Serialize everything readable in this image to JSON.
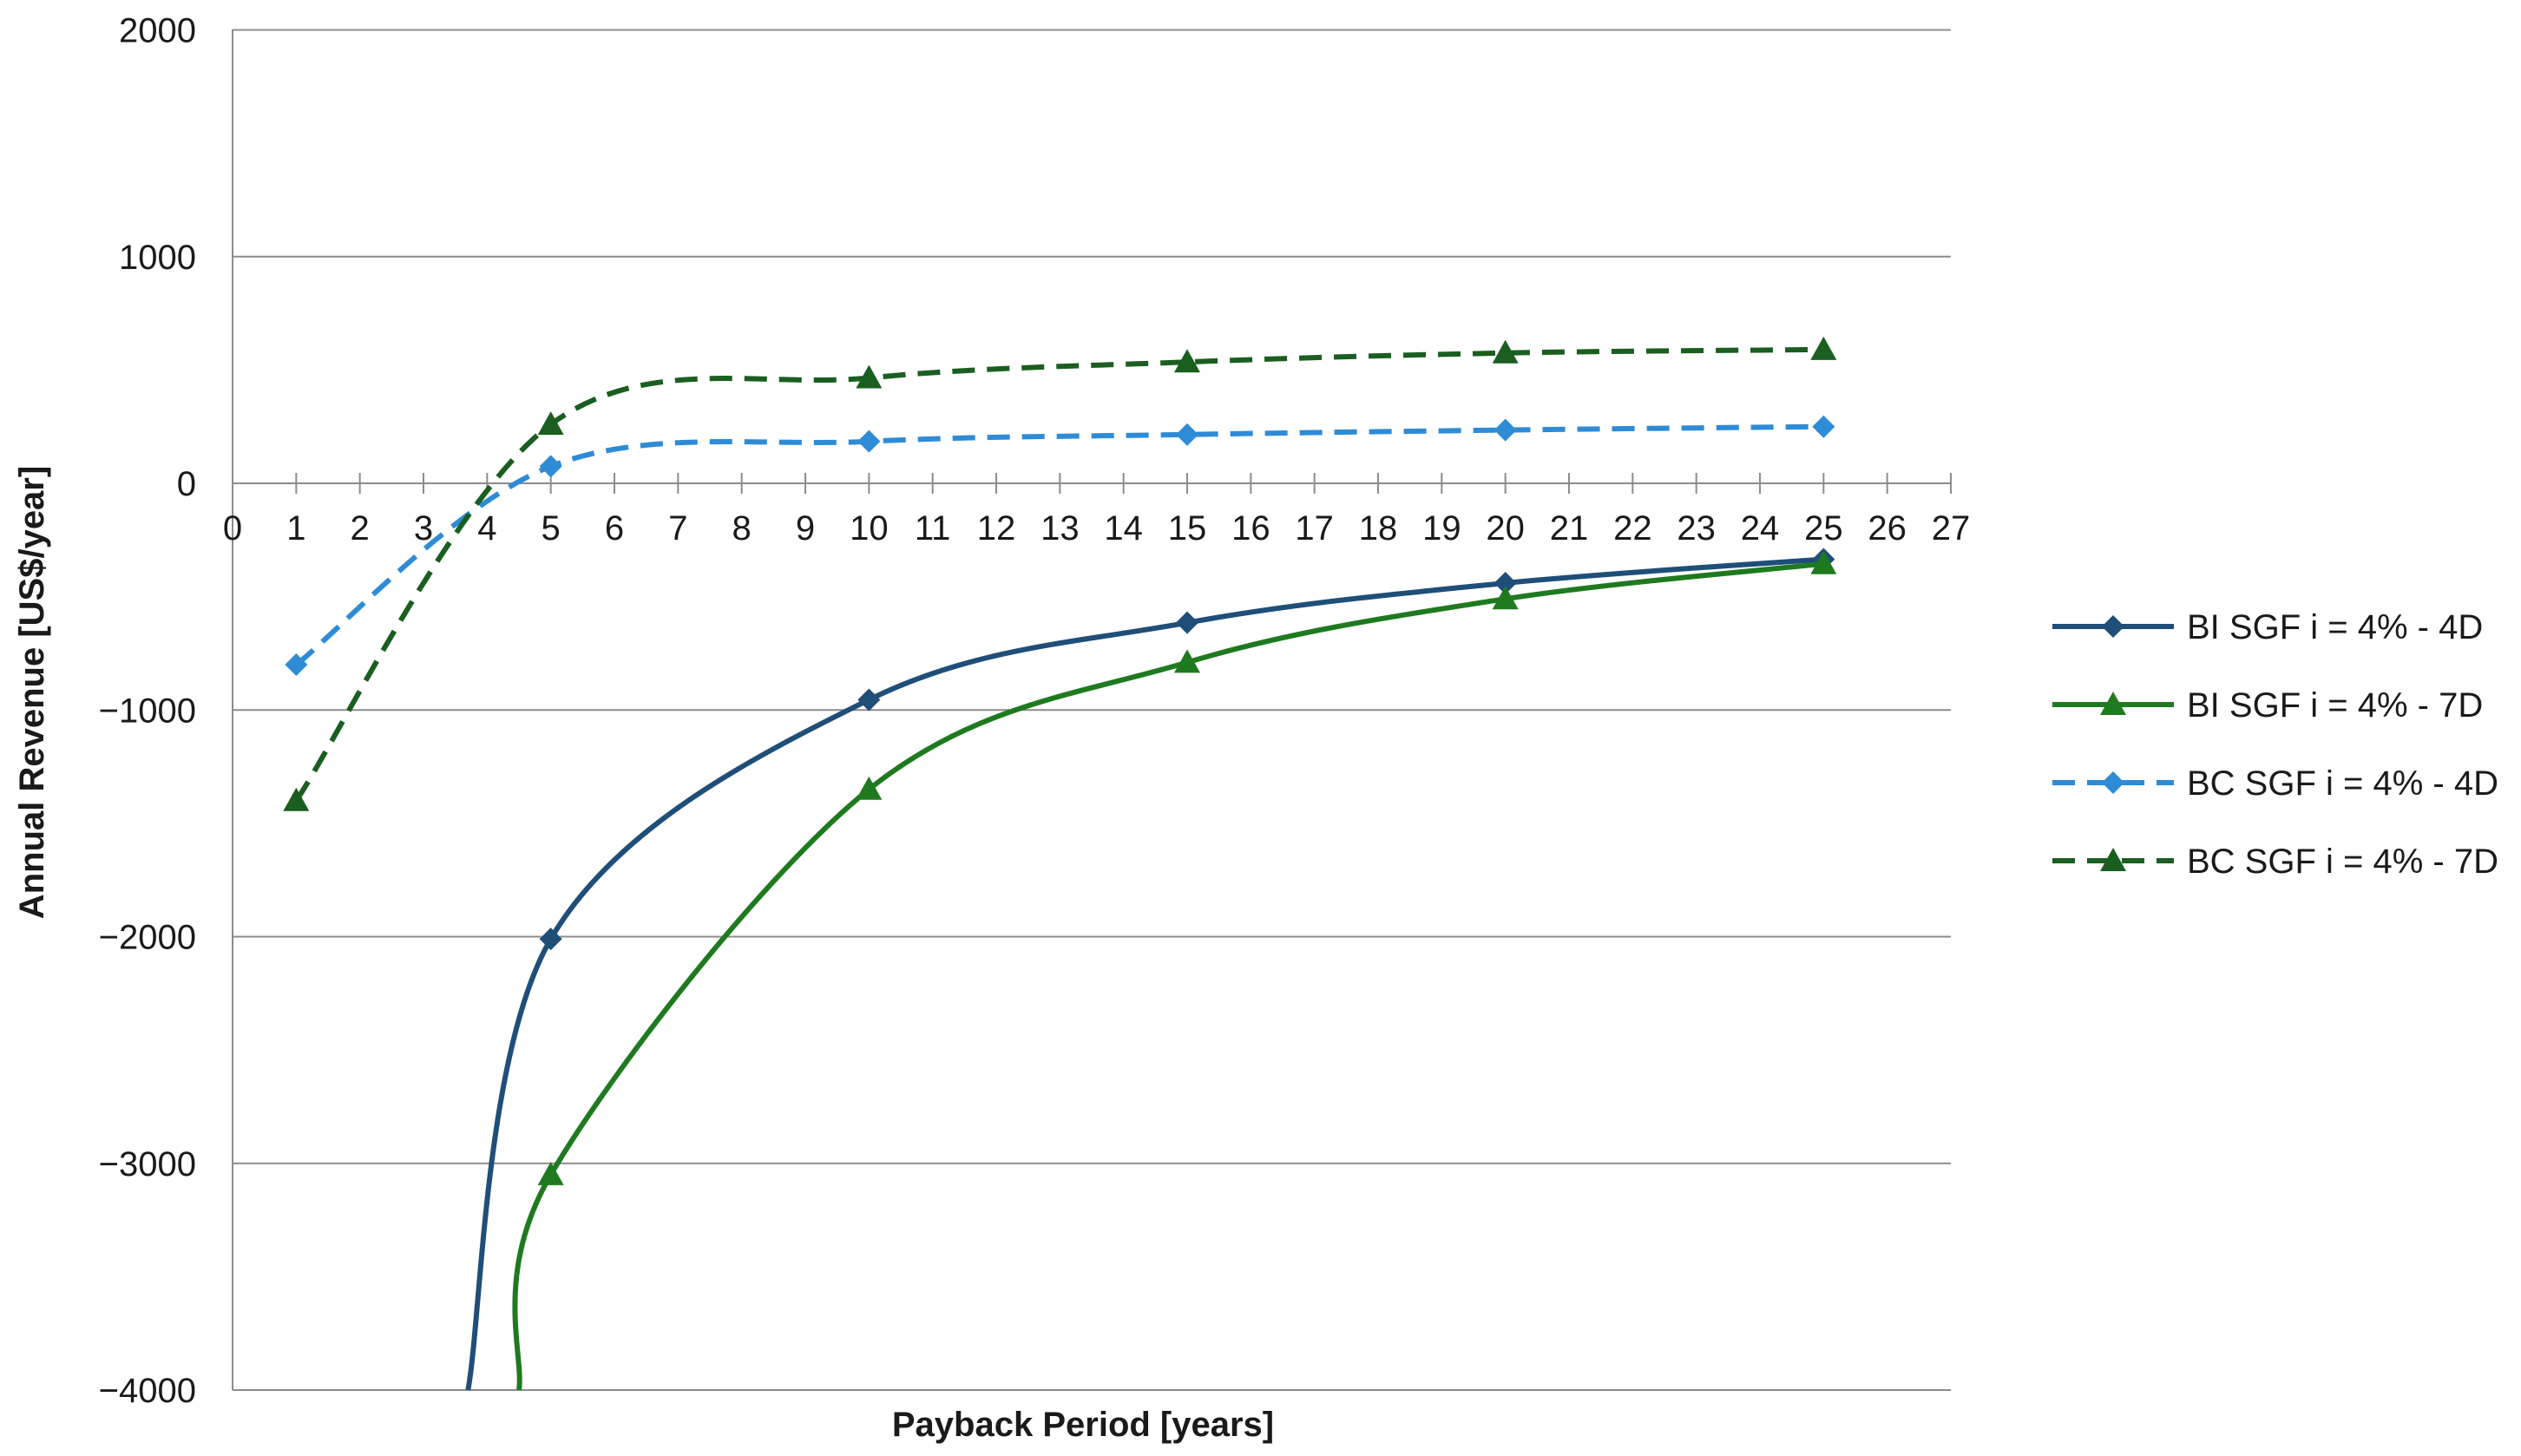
{
  "chart_data": {
    "type": "line",
    "title": "",
    "xlabel": "Payback Period [years]",
    "ylabel": "Annual Revenue [US$/year]",
    "xlim": [
      0,
      27
    ],
    "ylim": [
      -4000,
      2000
    ],
    "x_ticks": [
      0,
      1,
      2,
      3,
      4,
      5,
      6,
      7,
      8,
      9,
      10,
      11,
      12,
      13,
      14,
      15,
      16,
      17,
      18,
      19,
      20,
      21,
      22,
      23,
      24,
      25,
      26,
      27
    ],
    "y_ticks": [
      2000,
      1000,
      0,
      -1000,
      -2000,
      -3000,
      -4000
    ],
    "y_tick_labels": [
      "2000",
      "1000",
      "0",
      "−1000",
      "−2000",
      "−3000",
      "−4000"
    ],
    "grid": "horizontal",
    "legend_position": "right",
    "series": [
      {
        "name": "BI SGF i = 4% - 4D",
        "color": "#1f4e79",
        "dash": "solid",
        "marker": "diamond",
        "x": [
          5,
          10,
          15,
          20,
          25
        ],
        "y": [
          -2010,
          -955,
          -615,
          -440,
          -335
        ],
        "extrapolated_start": {
          "x": 3.7,
          "y": -4000
        }
      },
      {
        "name": "BI SGF i = 4% - 7D",
        "color": "#1f7a1f",
        "dash": "solid",
        "marker": "triangle",
        "x": [
          5,
          10,
          15,
          20,
          25
        ],
        "y": [
          -3050,
          -1350,
          -790,
          -510,
          -355
        ],
        "extrapolated_start": {
          "x": 4.5,
          "y": -4000
        }
      },
      {
        "name": "BC SGF i = 4% - 4D",
        "color": "#2e8bd6",
        "dash": "dashed",
        "marker": "diamond",
        "x": [
          1,
          5,
          10,
          15,
          20,
          25
        ],
        "y": [
          -800,
          75,
          185,
          215,
          235,
          250
        ]
      },
      {
        "name": "BC SGF i = 4% - 7D",
        "color": "#1a5e20",
        "dash": "dashed",
        "marker": "triangle",
        "x": [
          1,
          5,
          10,
          15,
          20,
          25
        ],
        "y": [
          -1400,
          260,
          465,
          535,
          575,
          590
        ]
      }
    ]
  }
}
